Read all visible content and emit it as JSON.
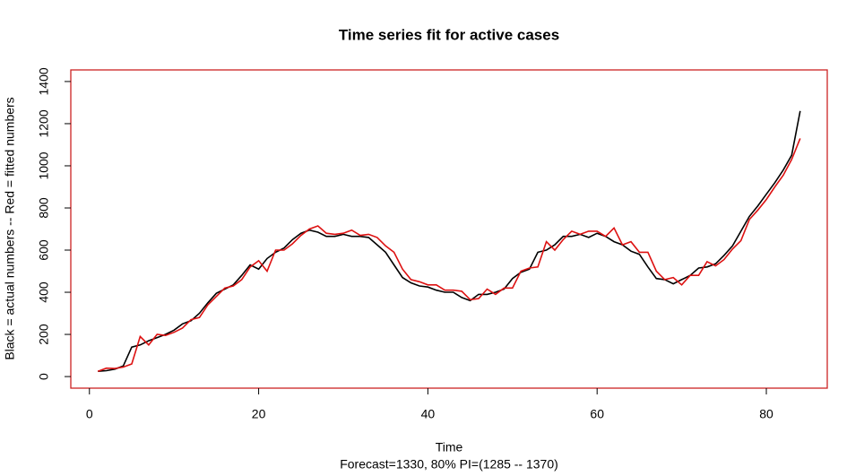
{
  "chart_data": {
    "type": "line",
    "title": "Time series fit for active cases",
    "x_label": "Time",
    "subtitle": "Forecast=1330, 80% PI=(1285 -- 1370)",
    "y_label": "Black = actual numbers -- Red = fitted numbers",
    "x": [
      1,
      2,
      3,
      4,
      5,
      6,
      7,
      8,
      9,
      10,
      11,
      12,
      13,
      14,
      15,
      16,
      17,
      18,
      19,
      20,
      21,
      22,
      23,
      24,
      25,
      26,
      27,
      28,
      29,
      30,
      31,
      32,
      33,
      34,
      35,
      36,
      37,
      38,
      39,
      40,
      41,
      42,
      43,
      44,
      45,
      46,
      47,
      48,
      49,
      50,
      51,
      52,
      53,
      54,
      55,
      56,
      57,
      58,
      59,
      60,
      61,
      62,
      63,
      64,
      65,
      66,
      67,
      68,
      69,
      70,
      71,
      72,
      73,
      74,
      75,
      76,
      77,
      78,
      79,
      80,
      81,
      82,
      83,
      84
    ],
    "series": [
      {
        "name": "Black = actual numbers",
        "color": "#000000",
        "values": [
          25,
          28,
          35,
          50,
          140,
          150,
          170,
          185,
          200,
          220,
          250,
          265,
          300,
          350,
          395,
          415,
          435,
          480,
          530,
          510,
          560,
          590,
          610,
          650,
          680,
          695,
          685,
          665,
          665,
          675,
          665,
          665,
          660,
          625,
          590,
          530,
          470,
          445,
          430,
          425,
          410,
          400,
          400,
          375,
          360,
          390,
          390,
          400,
          415,
          465,
          495,
          510,
          590,
          600,
          625,
          665,
          665,
          675,
          660,
          680,
          665,
          640,
          625,
          595,
          580,
          520,
          465,
          460,
          440,
          460,
          480,
          515,
          520,
          535,
          575,
          620,
          690,
          760,
          810,
          865,
          920,
          980,
          1050,
          1260
        ]
      },
      {
        "name": "Red = fitted numbers",
        "color": "#dd1111",
        "values": [
          25,
          40,
          38,
          45,
          60,
          190,
          150,
          200,
          195,
          210,
          230,
          270,
          280,
          340,
          380,
          420,
          430,
          460,
          520,
          550,
          500,
          600,
          600,
          630,
          670,
          700,
          715,
          680,
          675,
          680,
          695,
          670,
          675,
          660,
          620,
          590,
          510,
          460,
          450,
          435,
          435,
          410,
          410,
          405,
          365,
          370,
          415,
          390,
          420,
          420,
          500,
          515,
          520,
          640,
          600,
          650,
          690,
          675,
          690,
          690,
          665,
          705,
          625,
          640,
          590,
          590,
          500,
          460,
          470,
          435,
          480,
          480,
          545,
          525,
          555,
          605,
          645,
          745,
          790,
          840,
          900,
          955,
          1030,
          1130
        ]
      }
    ],
    "xlim": [
      -2.2,
      87.2
    ],
    "xticks": [
      0,
      20,
      40,
      60,
      80
    ],
    "ylim": [
      -55,
      1455
    ],
    "yticks": [
      0,
      200,
      400,
      600,
      800,
      1000,
      1200,
      1400
    ],
    "frame_color": "#cc2222"
  }
}
